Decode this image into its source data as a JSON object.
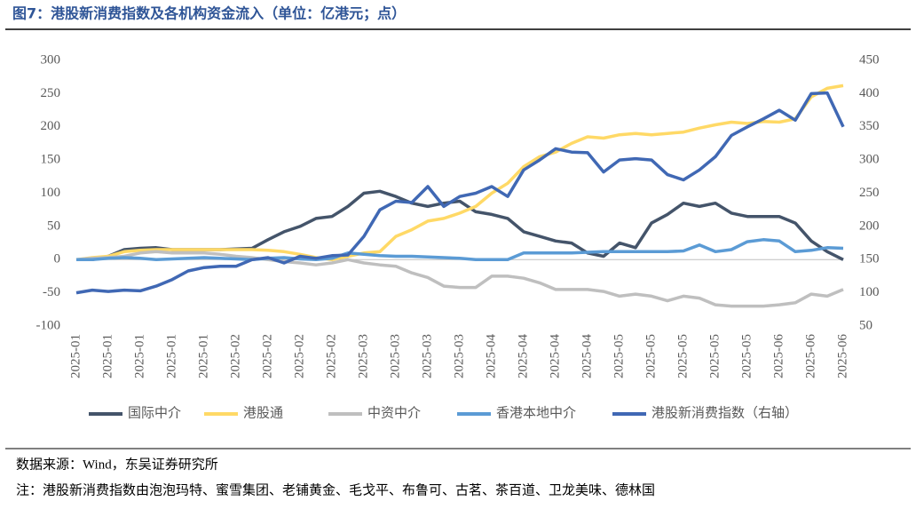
{
  "chart_data": {
    "type": "line",
    "title": "图7：港股新消费指数及各机构资金流入（单位：亿港元；点）",
    "categories": [
      "2025-01",
      null,
      "2025-01",
      null,
      "2025-01",
      null,
      "2025-01",
      null,
      "2025-01",
      null,
      "2025-02",
      null,
      "2025-02",
      null,
      "2025-02",
      null,
      "2025-02",
      null,
      "2025-03",
      null,
      "2025-03",
      null,
      "2025-03",
      null,
      "2025-03",
      null,
      "2025-04",
      null,
      "2025-04",
      null,
      "2025-04",
      null,
      "2025-04",
      null,
      "2025-05",
      null,
      "2025-05",
      null,
      "2025-05",
      null,
      "2025-05",
      null,
      "2025-05",
      null,
      "2025-06",
      null,
      "2025-06",
      null,
      "2025-06"
    ],
    "ylim": [
      -100,
      300
    ],
    "yticks": [
      -100,
      -50,
      0,
      50,
      100,
      150,
      200,
      250,
      300
    ],
    "y2lim": [
      50,
      450
    ],
    "y2ticks": [
      50,
      100,
      150,
      200,
      250,
      300,
      350,
      400,
      450
    ],
    "series": [
      {
        "name": "国际中介",
        "color": "#44546a",
        "values": [
          0,
          0,
          5,
          15,
          17,
          18,
          15,
          15,
          15,
          15,
          16,
          17,
          30,
          42,
          50,
          62,
          65,
          80,
          100,
          103,
          95,
          85,
          80,
          85,
          88,
          72,
          68,
          62,
          42,
          35,
          28,
          25,
          10,
          5,
          25,
          18,
          55,
          68,
          85,
          80,
          85,
          70,
          65,
          65,
          65,
          55,
          28,
          12,
          0
        ]
      },
      {
        "name": "港股通",
        "color": "#ffd966",
        "values": [
          0,
          3,
          5,
          12,
          14,
          15,
          15,
          15,
          15,
          15,
          15,
          15,
          14,
          12,
          8,
          3,
          0,
          5,
          10,
          12,
          35,
          45,
          58,
          62,
          70,
          80,
          100,
          115,
          140,
          155,
          162,
          175,
          185,
          183,
          188,
          190,
          188,
          190,
          192,
          198,
          203,
          207,
          205,
          208,
          207,
          212,
          245,
          258,
          262
        ]
      },
      {
        "name": "中资中介",
        "color": "#bfbfbf",
        "values": [
          0,
          2,
          3,
          5,
          10,
          12,
          10,
          10,
          10,
          8,
          5,
          3,
          0,
          -3,
          -5,
          -8,
          -5,
          0,
          -5,
          -8,
          -10,
          -20,
          -27,
          -40,
          -42,
          -42,
          -25,
          -25,
          -28,
          -35,
          -45,
          -45,
          -45,
          -48,
          -55,
          -52,
          -55,
          -62,
          -55,
          -58,
          -68,
          -70,
          -70,
          -70,
          -68,
          -65,
          -52,
          -55,
          -45
        ]
      },
      {
        "name": "香港本地中介",
        "color": "#5b9bd5",
        "values": [
          0,
          0,
          2,
          3,
          2,
          0,
          1,
          2,
          3,
          2,
          1,
          0,
          2,
          3,
          1,
          0,
          2,
          10,
          8,
          6,
          5,
          5,
          4,
          3,
          2,
          0,
          0,
          0,
          10,
          10,
          10,
          10,
          11,
          12,
          12,
          12,
          12,
          12,
          13,
          22,
          12,
          15,
          27,
          30,
          28,
          12,
          14,
          18,
          17
        ]
      },
      {
        "name": "港股新消费指数（右轴）",
        "color": "#4068b4",
        "axis": "y2",
        "values": [
          100,
          104,
          102,
          104,
          103,
          110,
          120,
          133,
          138,
          140,
          140,
          150,
          153,
          145,
          155,
          152,
          156,
          157,
          185,
          225,
          238,
          236,
          260,
          230,
          245,
          250,
          260,
          245,
          285,
          300,
          317,
          312,
          311,
          282,
          300,
          302,
          300,
          278,
          270,
          285,
          305,
          337,
          350,
          362,
          375,
          360,
          400,
          401,
          350
        ]
      }
    ]
  },
  "source": "数据来源：Wind，东吴证券研究所",
  "note": "注：港股新消费指数由泡泡玛特、蜜雪集团、老铺黄金、毛戈平、布鲁可、古茗、茶百道、卫龙美味、德林国"
}
